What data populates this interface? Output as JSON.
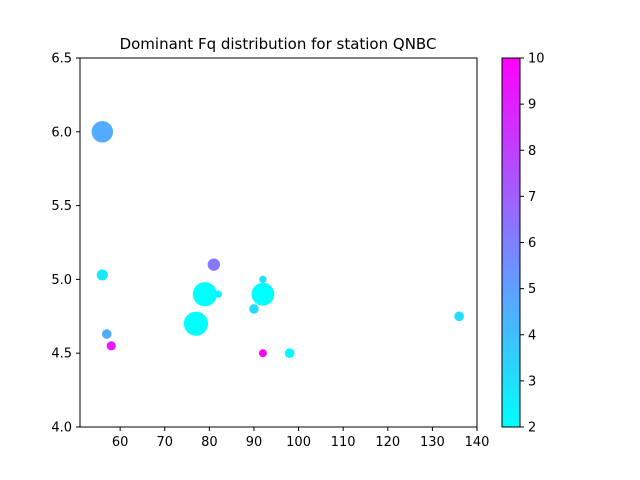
{
  "chart_data": {
    "type": "scatter",
    "title": "Dominant Fq distribution for station QNBC",
    "xlabel": "",
    "ylabel": "",
    "xlim": [
      51,
      140
    ],
    "ylim": [
      4.0,
      6.5
    ],
    "xticks": [
      60,
      70,
      80,
      90,
      100,
      110,
      120,
      130,
      140
    ],
    "yticks": [
      4.0,
      4.5,
      5.0,
      5.5,
      6.0,
      6.5
    ],
    "grid": false,
    "colormap": "cool",
    "colorbar": {
      "range": [
        2,
        10
      ],
      "ticks": [
        2,
        3,
        4,
        5,
        6,
        7,
        8,
        9,
        10
      ]
    },
    "points": [
      {
        "x": 56,
        "y": 6.0,
        "c": 4.6,
        "size": 300
      },
      {
        "x": 56,
        "y": 5.03,
        "c": 2.7,
        "size": 80
      },
      {
        "x": 57,
        "y": 4.63,
        "c": 4.6,
        "size": 60
      },
      {
        "x": 58,
        "y": 4.55,
        "c": 9.3,
        "size": 55
      },
      {
        "x": 77,
        "y": 4.7,
        "c": 2.0,
        "size": 380
      },
      {
        "x": 79,
        "y": 4.9,
        "c": 2.0,
        "size": 380
      },
      {
        "x": 81,
        "y": 5.1,
        "c": 6.2,
        "size": 100
      },
      {
        "x": 82,
        "y": 4.9,
        "c": 2.3,
        "size": 35
      },
      {
        "x": 90,
        "y": 4.8,
        "c": 3.1,
        "size": 60
      },
      {
        "x": 92,
        "y": 5.0,
        "c": 3.0,
        "size": 35
      },
      {
        "x": 92,
        "y": 4.9,
        "c": 2.0,
        "size": 340
      },
      {
        "x": 92,
        "y": 4.5,
        "c": 10.0,
        "size": 40
      },
      {
        "x": 98,
        "y": 4.5,
        "c": 2.2,
        "size": 60
      },
      {
        "x": 136,
        "y": 4.75,
        "c": 3.0,
        "size": 60
      }
    ]
  }
}
